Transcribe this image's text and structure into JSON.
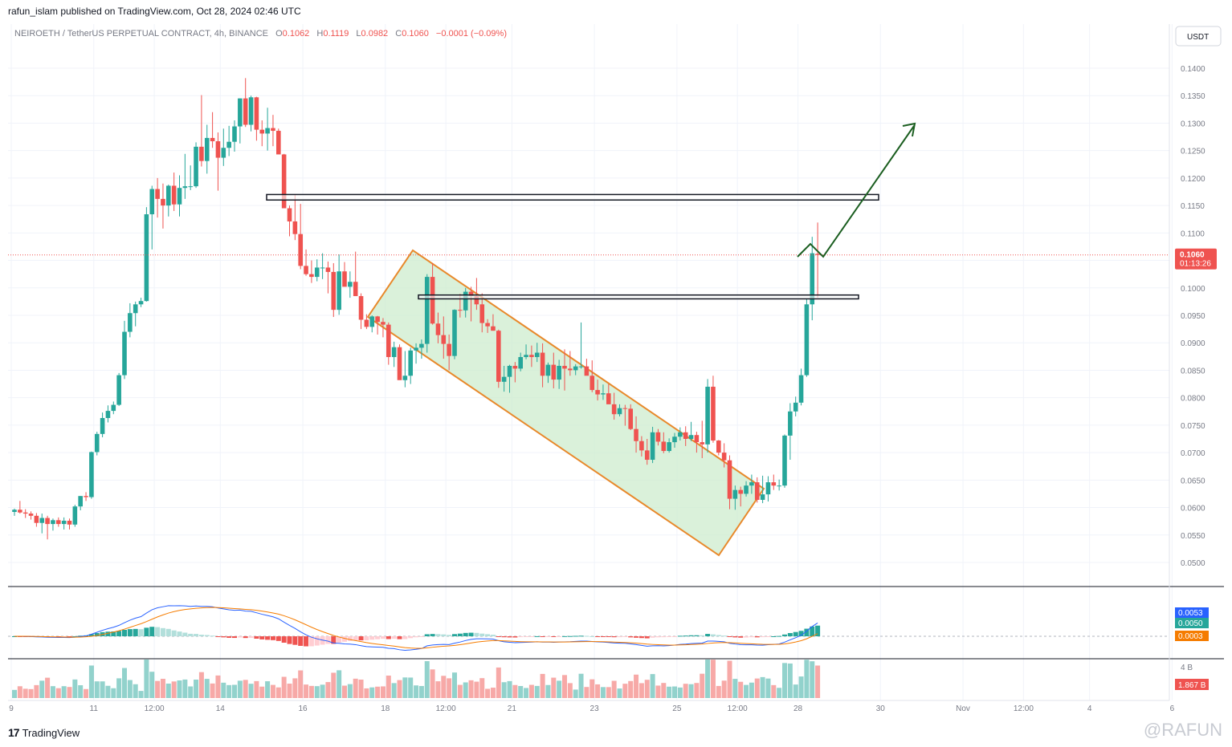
{
  "header": {
    "published": "rafun_islam published on TradingView.com, Oct 28, 2024 02:46 UTC"
  },
  "legend": {
    "symbol": "NEIROETH / TetherUS PERPETUAL CONTRACT, 4h, BINANCE",
    "o_label": "O",
    "o_value": "0.1062",
    "h_label": "H",
    "h_value": "0.1119",
    "l_label": "L",
    "l_value": "0.0982",
    "c_label": "C",
    "c_value": "0.1060",
    "change": "−0.0001 (−0.09%)"
  },
  "currency_button": "USDT",
  "price_badge": {
    "price": "0.1060",
    "countdown": "01:13:26"
  },
  "macd_badges": [
    "0.0053",
    "0.0050",
    "0.0003"
  ],
  "volume_axis_label": "4 B",
  "volume_badge": "1.867 B",
  "footer": {
    "brand": "TradingView",
    "watermark": "@RAFUN"
  },
  "colors": {
    "up": "#26a69a",
    "down": "#ef5350",
    "channel": "#e8892b",
    "channel_fill": "#cdeccd",
    "arrow": "#1b5e20",
    "macd": "#2962ff",
    "signal": "#f57c00"
  },
  "chart_data": {
    "type": "candlestick",
    "timeframe": "4h",
    "y_ticks": [
      "0.1400",
      "0.1350",
      "0.1300",
      "0.1250",
      "0.1200",
      "0.1150",
      "0.1100",
      "0.1050",
      "0.1000",
      "0.0950",
      "0.0900",
      "0.0850",
      "0.0800",
      "0.0750",
      "0.0700",
      "0.0650",
      "0.0600",
      "0.0550",
      "0.0500"
    ],
    "ylim": [
      0.0468,
      0.1454
    ],
    "x_ticks": [
      "9",
      "11",
      "12:00",
      "14",
      "16",
      "18",
      "12:00",
      "21",
      "23",
      "25",
      "12:00",
      "28",
      "30",
      "Nov",
      "12:00",
      "4",
      "6"
    ],
    "x_tick_bar_index": [
      0,
      15,
      26,
      38,
      53,
      68,
      79,
      91,
      106,
      121,
      132,
      143,
      158,
      173,
      184,
      196,
      211
    ],
    "ohlc": [
      [
        0.0592,
        0.0598,
        0.0585,
        0.0596
      ],
      [
        0.0596,
        0.0612,
        0.0589,
        0.0591
      ],
      [
        0.0591,
        0.0597,
        0.0581,
        0.0589
      ],
      [
        0.0589,
        0.0593,
        0.0578,
        0.0585
      ],
      [
        0.0585,
        0.059,
        0.0565,
        0.0572
      ],
      [
        0.0572,
        0.0589,
        0.0553,
        0.0581
      ],
      [
        0.0581,
        0.0585,
        0.0542,
        0.057
      ],
      [
        0.057,
        0.058,
        0.0558,
        0.0577
      ],
      [
        0.0577,
        0.0582,
        0.0565,
        0.057
      ],
      [
        0.057,
        0.0582,
        0.056,
        0.0576
      ],
      [
        0.0576,
        0.058,
        0.056,
        0.0569
      ],
      [
        0.0569,
        0.0605,
        0.0565,
        0.0602
      ],
      [
        0.0602,
        0.0621,
        0.0595,
        0.0621
      ],
      [
        0.0621,
        0.0628,
        0.0612,
        0.0619
      ],
      [
        0.0619,
        0.0702,
        0.0616,
        0.0701
      ],
      [
        0.0701,
        0.0738,
        0.0695,
        0.0734
      ],
      [
        0.0734,
        0.0773,
        0.0728,
        0.0763
      ],
      [
        0.0763,
        0.0786,
        0.0755,
        0.0776
      ],
      [
        0.0776,
        0.0793,
        0.077,
        0.0787
      ],
      [
        0.0787,
        0.0845,
        0.0785,
        0.0841
      ],
      [
        0.0841,
        0.094,
        0.0834,
        0.092
      ],
      [
        0.092,
        0.0972,
        0.091,
        0.0954
      ],
      [
        0.0954,
        0.0975,
        0.093,
        0.097
      ],
      [
        0.097,
        0.0982,
        0.0965,
        0.0976
      ],
      [
        0.0976,
        0.1147,
        0.0975,
        0.1134
      ],
      [
        0.1134,
        0.1186,
        0.107,
        0.118
      ],
      [
        0.118,
        0.12,
        0.1128,
        0.1162
      ],
      [
        0.1162,
        0.119,
        0.1108,
        0.115
      ],
      [
        0.115,
        0.1188,
        0.113,
        0.1186
      ],
      [
        0.1186,
        0.121,
        0.114,
        0.1152
      ],
      [
        0.1152,
        0.1205,
        0.113,
        0.1182
      ],
      [
        0.1182,
        0.1244,
        0.1162,
        0.1185
      ],
      [
        0.1185,
        0.1223,
        0.1178,
        0.1185
      ],
      [
        0.1185,
        0.1265,
        0.1182,
        0.1257
      ],
      [
        0.1257,
        0.1351,
        0.1221,
        0.1231
      ],
      [
        0.1231,
        0.1297,
        0.1208,
        0.1273
      ],
      [
        0.1273,
        0.132,
        0.1255,
        0.1267
      ],
      [
        0.1267,
        0.1283,
        0.1177,
        0.1237
      ],
      [
        0.1237,
        0.129,
        0.1222,
        0.1255
      ],
      [
        0.1255,
        0.1295,
        0.124,
        0.1266
      ],
      [
        0.1266,
        0.1305,
        0.1248,
        0.1294
      ],
      [
        0.1294,
        0.1345,
        0.1263,
        0.1345
      ],
      [
        0.1345,
        0.1382,
        0.1293,
        0.1297
      ],
      [
        0.1297,
        0.135,
        0.1285,
        0.1347
      ],
      [
        0.1347,
        0.1348,
        0.1268,
        0.1288
      ],
      [
        0.1288,
        0.1305,
        0.1258,
        0.1281
      ],
      [
        0.1281,
        0.1328,
        0.125,
        0.1291
      ],
      [
        0.1291,
        0.1315,
        0.1258,
        0.1286
      ],
      [
        0.1286,
        0.129,
        0.1248,
        0.1243
      ],
      [
        0.1243,
        0.1244,
        0.1148,
        0.1145
      ],
      [
        0.1145,
        0.115,
        0.1094,
        0.1121
      ],
      [
        0.1121,
        0.117,
        0.1087,
        0.1098
      ],
      [
        0.1098,
        0.1153,
        0.1034,
        0.104
      ],
      [
        0.104,
        0.107,
        0.1022,
        0.1025
      ],
      [
        0.1025,
        0.105,
        0.1009,
        0.102
      ],
      [
        0.102,
        0.1052,
        0.1012,
        0.1037
      ],
      [
        0.1037,
        0.1063,
        0.1016,
        0.1037
      ],
      [
        0.1037,
        0.1048,
        0.099,
        0.1029
      ],
      [
        0.1029,
        0.1045,
        0.0947,
        0.096
      ],
      [
        0.096,
        0.1061,
        0.0951,
        0.103
      ],
      [
        0.103,
        0.1047,
        0.1005,
        0.1002
      ],
      [
        0.1002,
        0.103,
        0.0982,
        0.1011
      ],
      [
        0.1011,
        0.1066,
        0.0992,
        0.0985
      ],
      [
        0.0985,
        0.099,
        0.0925,
        0.0942
      ],
      [
        0.0942,
        0.0952,
        0.0925,
        0.0929
      ],
      [
        0.0929,
        0.095,
        0.0919,
        0.0948
      ],
      [
        0.0948,
        0.0949,
        0.0915,
        0.0938
      ],
      [
        0.0938,
        0.0945,
        0.091,
        0.0933
      ],
      [
        0.0933,
        0.0937,
        0.086,
        0.0874
      ],
      [
        0.0874,
        0.0902,
        0.0856,
        0.0892
      ],
      [
        0.0892,
        0.0897,
        0.084,
        0.0832
      ],
      [
        0.0832,
        0.0885,
        0.0819,
        0.084
      ],
      [
        0.084,
        0.0891,
        0.0825,
        0.0886
      ],
      [
        0.0886,
        0.0899,
        0.0862,
        0.0891
      ],
      [
        0.0891,
        0.0906,
        0.0871,
        0.0898
      ],
      [
        0.0898,
        0.1025,
        0.0882,
        0.102
      ],
      [
        0.102,
        0.1045,
        0.0933,
        0.0935
      ],
      [
        0.0935,
        0.0955,
        0.0899,
        0.0914
      ],
      [
        0.0914,
        0.0948,
        0.0871,
        0.0898
      ],
      [
        0.0898,
        0.0915,
        0.085,
        0.0876
      ],
      [
        0.0876,
        0.0961,
        0.087,
        0.096
      ],
      [
        0.096,
        0.0989,
        0.0946,
        0.0959
      ],
      [
        0.0959,
        0.1,
        0.0946,
        0.0993
      ],
      [
        0.0993,
        0.1002,
        0.0939,
        0.0985
      ],
      [
        0.0985,
        0.1018,
        0.096,
        0.097
      ],
      [
        0.097,
        0.099,
        0.0919,
        0.0936
      ],
      [
        0.0936,
        0.0943,
        0.0918,
        0.093
      ],
      [
        0.093,
        0.0952,
        0.0922,
        0.0922
      ],
      [
        0.0922,
        0.0924,
        0.0818,
        0.0829
      ],
      [
        0.0829,
        0.0858,
        0.0811,
        0.0838
      ],
      [
        0.0838,
        0.086,
        0.0809,
        0.0858
      ],
      [
        0.0858,
        0.0865,
        0.0828,
        0.0853
      ],
      [
        0.0853,
        0.0882,
        0.0848,
        0.0874
      ],
      [
        0.0874,
        0.0897,
        0.087,
        0.0878
      ],
      [
        0.0878,
        0.0895,
        0.0856,
        0.0874
      ],
      [
        0.0874,
        0.09,
        0.0865,
        0.0882
      ],
      [
        0.0882,
        0.0899,
        0.0819,
        0.084
      ],
      [
        0.084,
        0.0864,
        0.0827,
        0.086
      ],
      [
        0.086,
        0.0882,
        0.0817,
        0.0833
      ],
      [
        0.0833,
        0.0869,
        0.0816,
        0.0858
      ],
      [
        0.0858,
        0.0888,
        0.0813,
        0.0853
      ],
      [
        0.0853,
        0.0885,
        0.084,
        0.085
      ],
      [
        0.085,
        0.0861,
        0.0841,
        0.0857
      ],
      [
        0.0857,
        0.0937,
        0.0853,
        0.0857
      ],
      [
        0.0857,
        0.0871,
        0.0841,
        0.084
      ],
      [
        0.084,
        0.0868,
        0.081,
        0.0814
      ],
      [
        0.0814,
        0.0833,
        0.0795,
        0.0806
      ],
      [
        0.0806,
        0.0824,
        0.0796,
        0.0808
      ],
      [
        0.0808,
        0.0825,
        0.0797,
        0.0788
      ],
      [
        0.0788,
        0.0809,
        0.076,
        0.077
      ],
      [
        0.077,
        0.0788,
        0.0766,
        0.0781
      ],
      [
        0.0781,
        0.0787,
        0.0749,
        0.078
      ],
      [
        0.078,
        0.0788,
        0.0741,
        0.0743
      ],
      [
        0.0743,
        0.0766,
        0.07,
        0.0721
      ],
      [
        0.0721,
        0.073,
        0.0693,
        0.0704
      ],
      [
        0.0704,
        0.0725,
        0.0678,
        0.0687
      ],
      [
        0.0687,
        0.0747,
        0.0681,
        0.0737
      ],
      [
        0.0737,
        0.0743,
        0.0713,
        0.072
      ],
      [
        0.072,
        0.0737,
        0.0699,
        0.0703
      ],
      [
        0.0703,
        0.0726,
        0.07,
        0.0719
      ],
      [
        0.0719,
        0.0736,
        0.0709,
        0.0729
      ],
      [
        0.0729,
        0.0746,
        0.0722,
        0.0737
      ],
      [
        0.0737,
        0.0748,
        0.0712,
        0.0725
      ],
      [
        0.0725,
        0.0756,
        0.0721,
        0.0732
      ],
      [
        0.0732,
        0.0738,
        0.07,
        0.0719
      ],
      [
        0.0719,
        0.0758,
        0.069,
        0.0715
      ],
      [
        0.0715,
        0.0834,
        0.07,
        0.082
      ],
      [
        0.082,
        0.084,
        0.0718,
        0.0722
      ],
      [
        0.0722,
        0.0723,
        0.0695,
        0.07
      ],
      [
        0.07,
        0.0717,
        0.0673,
        0.0686
      ],
      [
        0.0686,
        0.0695,
        0.0597,
        0.0616
      ],
      [
        0.0616,
        0.064,
        0.0596,
        0.0632
      ],
      [
        0.0632,
        0.0638,
        0.0602,
        0.0625
      ],
      [
        0.0625,
        0.0648,
        0.062,
        0.064
      ],
      [
        0.064,
        0.066,
        0.0625,
        0.0646
      ],
      [
        0.0646,
        0.0655,
        0.0609,
        0.0614
      ],
      [
        0.0614,
        0.0658,
        0.0608,
        0.0624
      ],
      [
        0.0624,
        0.0657,
        0.0611,
        0.0646
      ],
      [
        0.0646,
        0.066,
        0.0632,
        0.064
      ],
      [
        0.064,
        0.0651,
        0.0631,
        0.064
      ],
      [
        0.064,
        0.0733,
        0.0636,
        0.0731
      ],
      [
        0.0731,
        0.079,
        0.0687,
        0.0775
      ],
      [
        0.0775,
        0.0802,
        0.0766,
        0.0791
      ],
      [
        0.0791,
        0.0853,
        0.0786,
        0.0841
      ],
      [
        0.0841,
        0.098,
        0.0838,
        0.097
      ],
      [
        0.097,
        0.1093,
        0.0941,
        0.1063
      ],
      [
        0.1062,
        0.1119,
        0.0982,
        0.106
      ]
    ],
    "annotations": {
      "resistance_zone": [
        0.116,
        0.117
      ],
      "support_zone": [
        0.098,
        0.0987
      ],
      "descending_channel": true,
      "projection_arrow": true
    },
    "macd": {
      "series": [
        {
          "name": "MACD",
          "value": 0.0053
        },
        {
          "name": "Signal",
          "value": 0.005
        },
        {
          "name": "Histogram",
          "value": 0.0003
        }
      ]
    },
    "volume_last": "1.867 B"
  }
}
